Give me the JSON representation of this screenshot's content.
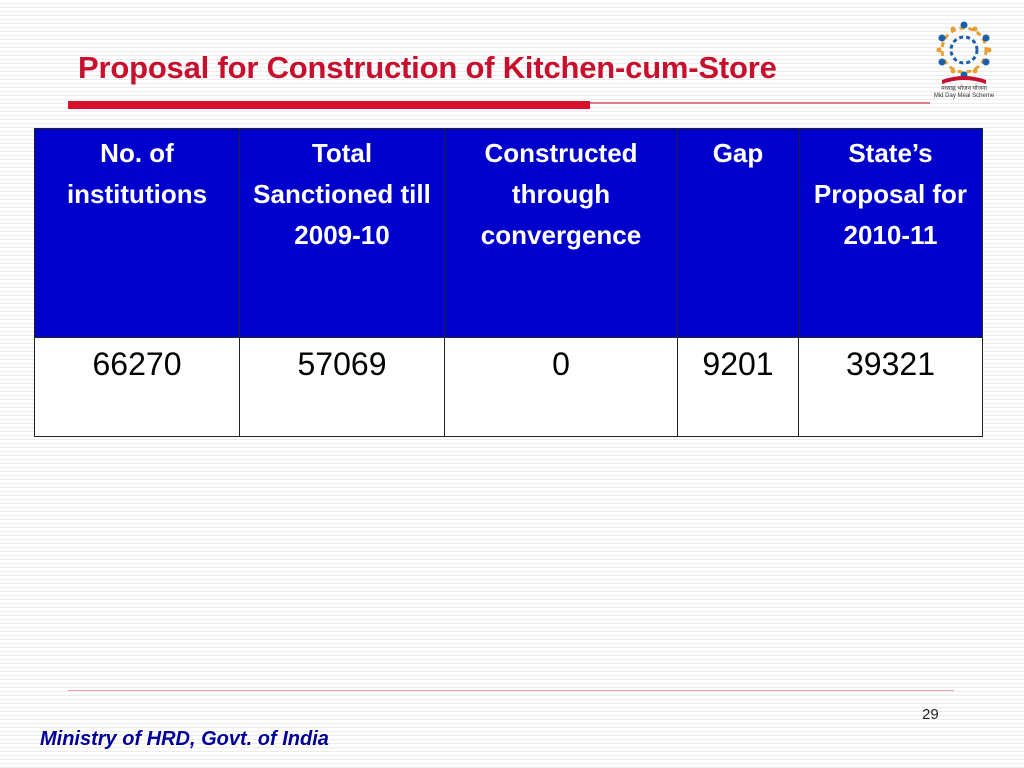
{
  "slide": {
    "title": "Proposal for Construction of Kitchen-cum-Store",
    "logo_caption_hindi": "मध्याह्न भोजन योजना",
    "logo_caption": "Mid Day Meal Scheme",
    "slide_number": "29",
    "footer": "Ministry of HRD, Govt. of India"
  },
  "table": {
    "headers": [
      "No. of institutions",
      "Total Sanctioned till 2009-10",
      "Constructed through convergence",
      "Gap",
      "State’s Proposal for 2010-11"
    ],
    "rows": [
      [
        "66270",
        "57069",
        "0",
        "9201",
        "39321"
      ]
    ]
  },
  "colors": {
    "title": "#c8102e",
    "header_bg": "#0000cc",
    "header_text": "#ffffff",
    "footer_text": "#000099"
  }
}
